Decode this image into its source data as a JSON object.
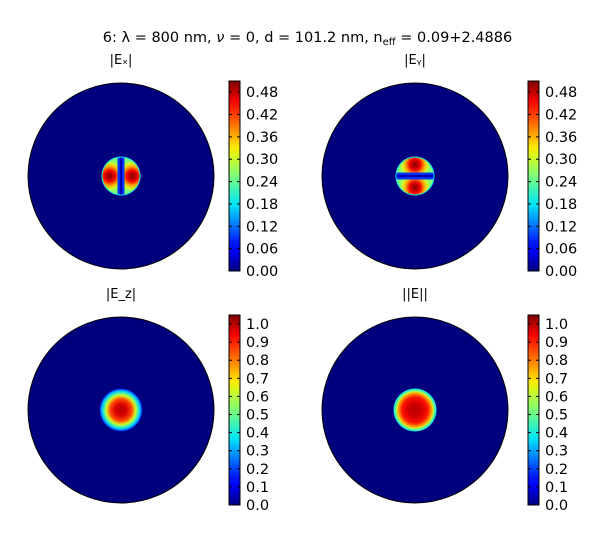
{
  "figure": {
    "title_prefix": "6: λ = 800 nm, ",
    "title_nu": "ν",
    "title_mid": " = 0, d = 101.2 nm, n",
    "title_sub": "eff",
    "title_suffix": " = 0.09+2.4886"
  },
  "colormap": "jet",
  "chart_data": [
    {
      "type": "heatmap",
      "title": "|Eₓ|",
      "description": "field magnitude inside circular fiber cross-section",
      "colorbar": {
        "ticks": [
          "0.00",
          "0.06",
          "0.12",
          "0.18",
          "0.24",
          "0.30",
          "0.36",
          "0.42",
          "0.48"
        ],
        "vmin": 0.0,
        "vmax": 0.51
      },
      "field_shape": "two-lobes-horizontal",
      "core_radius_fraction": 0.21,
      "peak_value": 0.51,
      "background_value": 0.0
    },
    {
      "type": "heatmap",
      "title": "|Eᵧ|",
      "description": "field magnitude inside circular fiber cross-section",
      "colorbar": {
        "ticks": [
          "0.00",
          "0.06",
          "0.12",
          "0.18",
          "0.24",
          "0.30",
          "0.36",
          "0.42",
          "0.48"
        ],
        "vmin": 0.0,
        "vmax": 0.51
      },
      "field_shape": "two-lobes-vertical",
      "core_radius_fraction": 0.21,
      "peak_value": 0.51,
      "background_value": 0.0
    },
    {
      "type": "heatmap",
      "title": "|E_z|",
      "description": "field magnitude inside circular fiber cross-section",
      "colorbar": {
        "ticks": [
          "0.0",
          "0.1",
          "0.2",
          "0.3",
          "0.4",
          "0.5",
          "0.6",
          "0.7",
          "0.8",
          "0.9",
          "1.0"
        ],
        "vmin": 0.0,
        "vmax": 1.05
      },
      "field_shape": "gaussian-spot",
      "core_radius_fraction": 0.21,
      "peak_value": 1.0,
      "background_value": 0.0
    },
    {
      "type": "heatmap",
      "title": "||E||",
      "description": "field magnitude inside circular fiber cross-section",
      "colorbar": {
        "ticks": [
          "0.0",
          "0.1",
          "0.2",
          "0.3",
          "0.4",
          "0.5",
          "0.6",
          "0.7",
          "0.8",
          "0.9",
          "1.0"
        ],
        "vmin": 0.0,
        "vmax": 1.05
      },
      "field_shape": "flat-top-spot",
      "core_radius_fraction": 0.21,
      "peak_value": 1.0,
      "background_value": 0.0
    }
  ]
}
